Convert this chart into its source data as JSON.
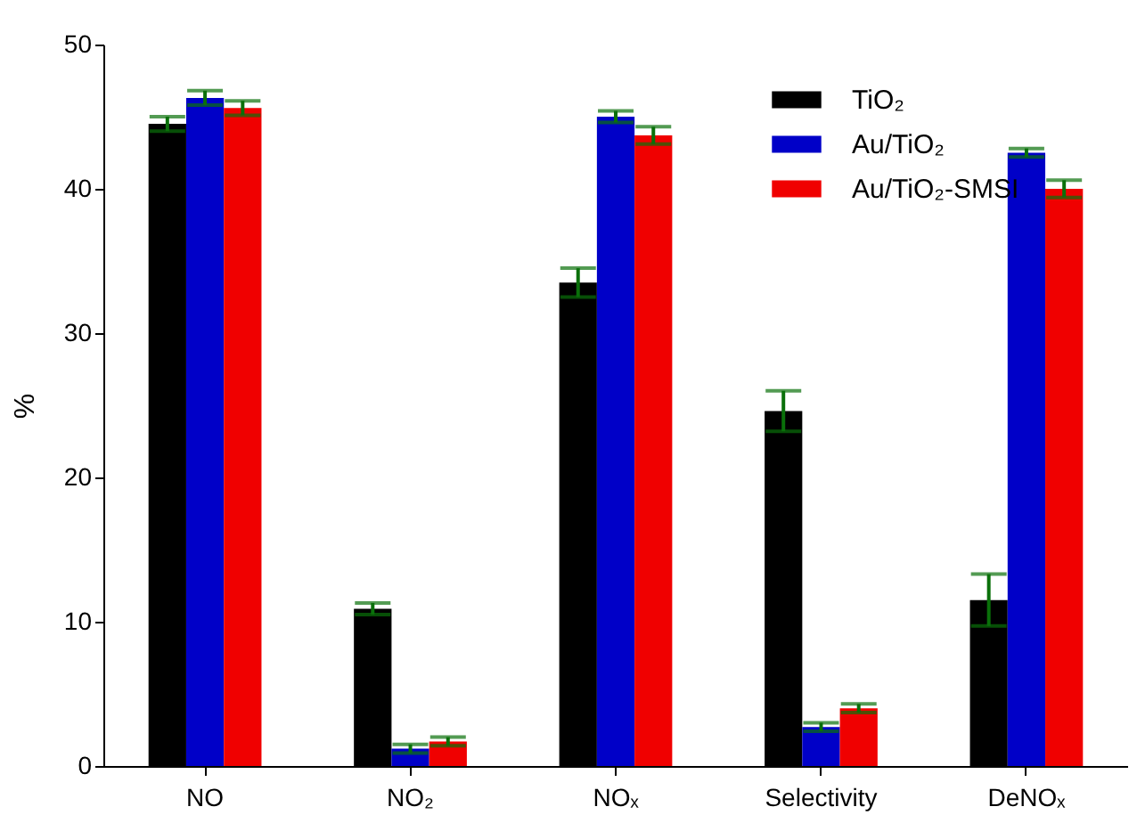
{
  "chart_data": {
    "type": "bar",
    "ylabel": "%",
    "categories": [
      "NO",
      "NO₂",
      "NOₓ",
      "Selectivity",
      "DeNOₓ"
    ],
    "series": [
      {
        "name": "TiO₂",
        "color": "#000000",
        "values": [
          44.5,
          10.9,
          33.5,
          24.6,
          11.5
        ],
        "errors": [
          0.5,
          0.4,
          1.0,
          1.4,
          1.8
        ]
      },
      {
        "name": "Au/TiO₂",
        "color": "#0000c8",
        "values": [
          46.3,
          1.2,
          45.0,
          2.7,
          42.5
        ],
        "errors": [
          0.5,
          0.3,
          0.4,
          0.3,
          0.3
        ]
      },
      {
        "name": "Au/TiO₂-SMSI",
        "color": "#f00000",
        "values": [
          45.6,
          1.7,
          43.7,
          4.0,
          40.0
        ],
        "errors": [
          0.5,
          0.3,
          0.6,
          0.3,
          0.6
        ]
      }
    ],
    "ylim": [
      0,
      50
    ],
    "yticks": [
      0,
      10,
      20,
      30,
      40,
      50
    ],
    "grid": false,
    "legend": "top right"
  }
}
